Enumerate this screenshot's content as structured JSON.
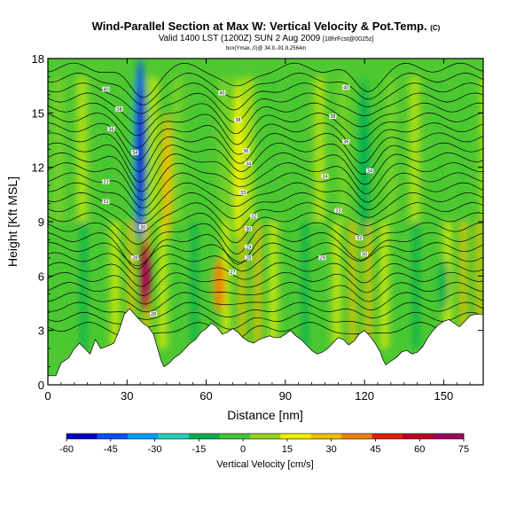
{
  "chart_data": {
    "type": "heatmap",
    "title": "Wind-Parallel Section at Max W: Vertical Velocity & Pot.Temp.",
    "title_mark": "(C)",
    "subtitle_main": "Valid 1400 LST (1200Z) SUN 2 Aug 2009",
    "subtitle_small": "[18hrFcst@0025z]",
    "tiny_text": "box(Ymax,,0)@ 34.9,-91.8,2564m",
    "xlabel": "Distance [nm]",
    "ylabel": "Height [Kft MSL]",
    "xlim": [
      0,
      165
    ],
    "ylim": [
      0,
      18
    ],
    "x_ticks": [
      "0",
      "30",
      "60",
      "90",
      "120",
      "150"
    ],
    "y_ticks": [
      "0",
      "3",
      "6",
      "9",
      "12",
      "15",
      "18"
    ],
    "colorbar": {
      "label": "Vertical Velocity [cm/s]",
      "range": [
        -60,
        75
      ],
      "ticks": [
        "-60",
        "-45",
        "-30",
        "-15",
        "0",
        "15",
        "30",
        "45",
        "60",
        "75"
      ],
      "colors": [
        "#0000cc",
        "#0050ff",
        "#00a0ff",
        "#20d0c0",
        "#00b050",
        "#40c830",
        "#90d820",
        "#f0f000",
        "#f0c000",
        "#f08000",
        "#e02000",
        "#c00020",
        "#a00060"
      ]
    },
    "grid": false,
    "legend": "colorbar-bottom",
    "vertical_velocity_features": [
      {
        "x": 35,
        "z_min": 8,
        "z_max": 18,
        "w": -40
      },
      {
        "x": 37,
        "z_min": 4,
        "z_max": 8,
        "w": 55
      },
      {
        "x": 45,
        "z_min": 8,
        "z_max": 15,
        "w": 30
      },
      {
        "x": 65,
        "z_min": 4,
        "z_max": 7,
        "w": 35
      },
      {
        "x": 72,
        "z_min": 8,
        "z_max": 17,
        "w": 20
      },
      {
        "x": 120,
        "z_min": 8,
        "z_max": 17,
        "w": -15
      },
      {
        "x": 150,
        "z_min": 4,
        "z_max": 7,
        "w": -10
      }
    ],
    "terrain_profile": [
      [
        0,
        0.5
      ],
      [
        3,
        0.5
      ],
      [
        5,
        1.2
      ],
      [
        8,
        1.5
      ],
      [
        10,
        2.0
      ],
      [
        12,
        2.3
      ],
      [
        14,
        2.0
      ],
      [
        16,
        1.7
      ],
      [
        18,
        2.5
      ],
      [
        20,
        2.0
      ],
      [
        22,
        2.1
      ],
      [
        25,
        2.3
      ],
      [
        27,
        3.0
      ],
      [
        29,
        3.9
      ],
      [
        31,
        4.2
      ],
      [
        34,
        3.7
      ],
      [
        36,
        3.4
      ],
      [
        38,
        3.2
      ],
      [
        40,
        2.8
      ],
      [
        42,
        1.8
      ],
      [
        43,
        1.3
      ],
      [
        44,
        1.0
      ],
      [
        46,
        1.2
      ],
      [
        48,
        1.5
      ],
      [
        50,
        1.7
      ],
      [
        52,
        2.0
      ],
      [
        54,
        2.3
      ],
      [
        56,
        2.5
      ],
      [
        58,
        2.9
      ],
      [
        60,
        3.1
      ],
      [
        62,
        3.4
      ],
      [
        64,
        3.2
      ],
      [
        66,
        2.8
      ],
      [
        68,
        2.9
      ],
      [
        70,
        3.1
      ],
      [
        72,
        2.9
      ],
      [
        74,
        2.6
      ],
      [
        76,
        2.4
      ],
      [
        78,
        2.3
      ],
      [
        80,
        2.5
      ],
      [
        82,
        2.6
      ],
      [
        84,
        2.7
      ],
      [
        86,
        2.6
      ],
      [
        88,
        2.6
      ],
      [
        90,
        2.8
      ],
      [
        92,
        3.0
      ],
      [
        94,
        2.7
      ],
      [
        96,
        2.5
      ],
      [
        98,
        2.2
      ],
      [
        100,
        1.9
      ],
      [
        102,
        1.7
      ],
      [
        104,
        1.8
      ],
      [
        106,
        2.0
      ],
      [
        108,
        2.3
      ],
      [
        110,
        2.6
      ],
      [
        112,
        2.5
      ],
      [
        114,
        2.2
      ],
      [
        116,
        2.4
      ],
      [
        118,
        2.8
      ],
      [
        120,
        3.0
      ],
      [
        122,
        2.7
      ],
      [
        124,
        2.3
      ],
      [
        126,
        1.8
      ],
      [
        127,
        1.4
      ],
      [
        128,
        1.1
      ],
      [
        130,
        1.3
      ],
      [
        132,
        1.5
      ],
      [
        134,
        1.8
      ],
      [
        136,
        1.9
      ],
      [
        138,
        1.7
      ],
      [
        140,
        1.8
      ],
      [
        142,
        2.1
      ],
      [
        144,
        2.6
      ],
      [
        146,
        3.0
      ],
      [
        148,
        3.3
      ],
      [
        150,
        3.5
      ],
      [
        152,
        3.6
      ],
      [
        154,
        3.4
      ],
      [
        156,
        3.2
      ],
      [
        158,
        3.5
      ],
      [
        160,
        3.8
      ],
      [
        162,
        3.9
      ],
      [
        165,
        3.9
      ]
    ],
    "contour_labels": [
      {
        "x": 22,
        "y": 16.3,
        "text": "40"
      },
      {
        "x": 27,
        "y": 15.2,
        "text": "38"
      },
      {
        "x": 24,
        "y": 14.1,
        "text": "36"
      },
      {
        "x": 22,
        "y": 11.2,
        "text": "33"
      },
      {
        "x": 22,
        "y": 10.1,
        "text": "32"
      },
      {
        "x": 36,
        "y": 8.7,
        "text": "30"
      },
      {
        "x": 33,
        "y": 12.8,
        "text": "34"
      },
      {
        "x": 33,
        "y": 7.0,
        "text": "28"
      },
      {
        "x": 66,
        "y": 16.1,
        "text": "40"
      },
      {
        "x": 72,
        "y": 14.6,
        "text": "38"
      },
      {
        "x": 75,
        "y": 12.9,
        "text": "36"
      },
      {
        "x": 76,
        "y": 12.2,
        "text": "34"
      },
      {
        "x": 74,
        "y": 10.6,
        "text": "33"
      },
      {
        "x": 78,
        "y": 9.3,
        "text": "32"
      },
      {
        "x": 76,
        "y": 8.6,
        "text": "30"
      },
      {
        "x": 76,
        "y": 7.6,
        "text": "29"
      },
      {
        "x": 76,
        "y": 7.0,
        "text": "28"
      },
      {
        "x": 70,
        "y": 6.2,
        "text": "27"
      },
      {
        "x": 113,
        "y": 16.4,
        "text": "40"
      },
      {
        "x": 108,
        "y": 14.8,
        "text": "38"
      },
      {
        "x": 113,
        "y": 13.4,
        "text": "36"
      },
      {
        "x": 122,
        "y": 11.8,
        "text": "34"
      },
      {
        "x": 105,
        "y": 11.5,
        "text": "34"
      },
      {
        "x": 110,
        "y": 9.6,
        "text": "33"
      },
      {
        "x": 118,
        "y": 8.1,
        "text": "32"
      },
      {
        "x": 120,
        "y": 7.2,
        "text": "30"
      },
      {
        "x": 104,
        "y": 7.0,
        "text": "29"
      },
      {
        "x": 40,
        "y": 3.9,
        "text": "28"
      }
    ]
  }
}
